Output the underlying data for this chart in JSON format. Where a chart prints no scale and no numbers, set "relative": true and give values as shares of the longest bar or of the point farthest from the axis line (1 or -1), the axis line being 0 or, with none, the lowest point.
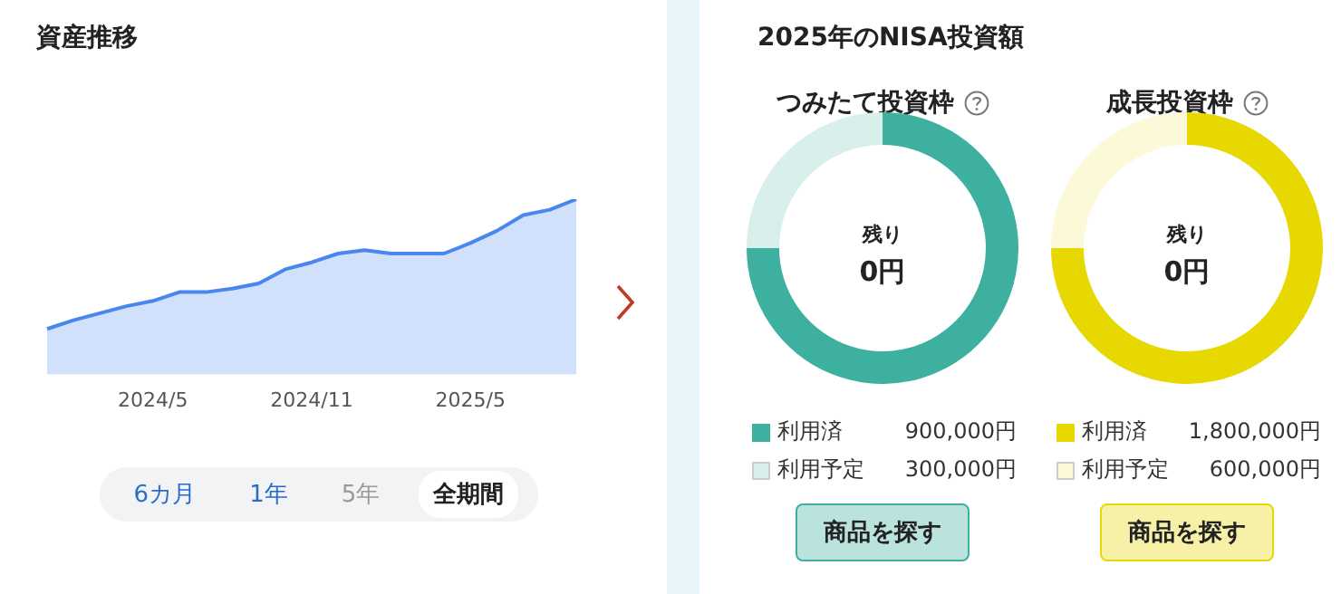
{
  "chart_data": [
    {
      "type": "area",
      "title": "資産推移",
      "categories": [
        null,
        null,
        null,
        null,
        "2024/5",
        null,
        null,
        null,
        null,
        null,
        "2024/11",
        null,
        null,
        null,
        null,
        null,
        "2025/5",
        null,
        null,
        null,
        null
      ],
      "relative": true,
      "series": [
        {
          "color": "#4a86f0",
          "values": [
            0.26,
            0.31,
            0.35,
            0.39,
            0.42,
            0.47,
            0.47,
            0.49,
            0.52,
            0.6,
            0.64,
            0.69,
            0.71,
            0.69,
            0.69,
            0.69,
            0.75,
            0.82,
            0.91,
            0.94,
            1
          ]
        }
      ],
      "annotations": [
        "6カ月",
        "1年",
        "5年",
        "全期間"
      ]
    },
    {
      "type": "other",
      "title": "2025年のNISA投資額"
    },
    {
      "type": "donut",
      "title": "つみたて投資枠",
      "categories": [
        "利用済",
        "利用予定"
      ],
      "values": [
        900000,
        300000
      ],
      "colors": [
        "#3db0a0",
        "#d8efec"
      ],
      "value_labels": [
        "900,000円",
        "300,000円"
      ],
      "legend": "bottom",
      "annotations": [
        "残り",
        "0円",
        "商品を探す"
      ]
    },
    {
      "type": "donut",
      "title": "成長投資枠",
      "categories": [
        "利用済",
        "利用予定"
      ],
      "values": [
        1800000,
        600000
      ],
      "colors": [
        "#e6d800",
        "#fbf9d8"
      ],
      "value_labels": [
        "1,800,000円",
        "600,000円"
      ],
      "legend": "bottom",
      "annotations": [
        "残り",
        "0円",
        "商品を探す"
      ]
    }
  ]
}
